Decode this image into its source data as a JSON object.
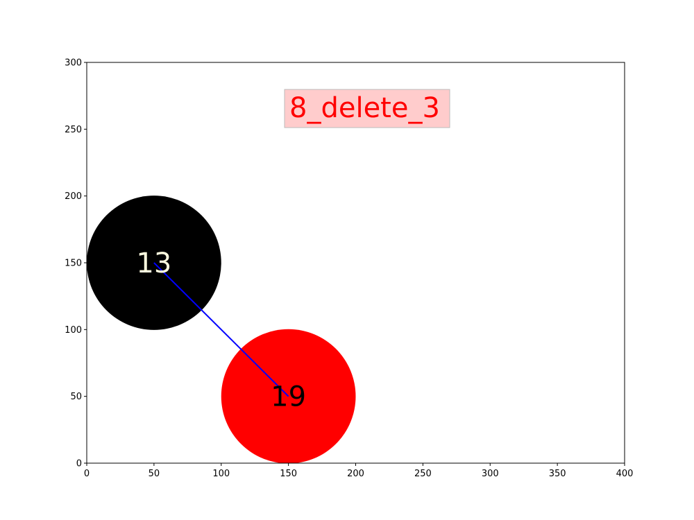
{
  "title": {
    "text": "8_delete_3",
    "text_color": "#ff0000",
    "box_color": "#ffcccc",
    "box_edge_color": "#bbbbbb",
    "anchor": {
      "x": 150,
      "y": 265
    }
  },
  "axes": {
    "xlim": [
      0,
      400
    ],
    "ylim": [
      0,
      300
    ],
    "xticks": [
      "0",
      "50",
      "100",
      "150",
      "200",
      "250",
      "300",
      "350",
      "400"
    ],
    "yticks": [
      "0",
      "50",
      "100",
      "150",
      "200",
      "250",
      "300"
    ],
    "xtick_values": [
      0,
      50,
      100,
      150,
      200,
      250,
      300,
      350,
      400
    ],
    "ytick_values": [
      0,
      50,
      100,
      150,
      200,
      250,
      300
    ]
  },
  "nodes": [
    {
      "id": "node-13",
      "label": "13",
      "x": 50,
      "y": 150,
      "radius": 50,
      "fill": "#000000",
      "text_color": "#fffde0"
    },
    {
      "id": "node-19",
      "label": "19",
      "x": 150,
      "y": 50,
      "radius": 50,
      "fill": "#ff0000",
      "text_color": "#000000"
    }
  ],
  "edges": [
    {
      "from": "node-13",
      "to": "node-19",
      "color": "#0000ff"
    }
  ]
}
